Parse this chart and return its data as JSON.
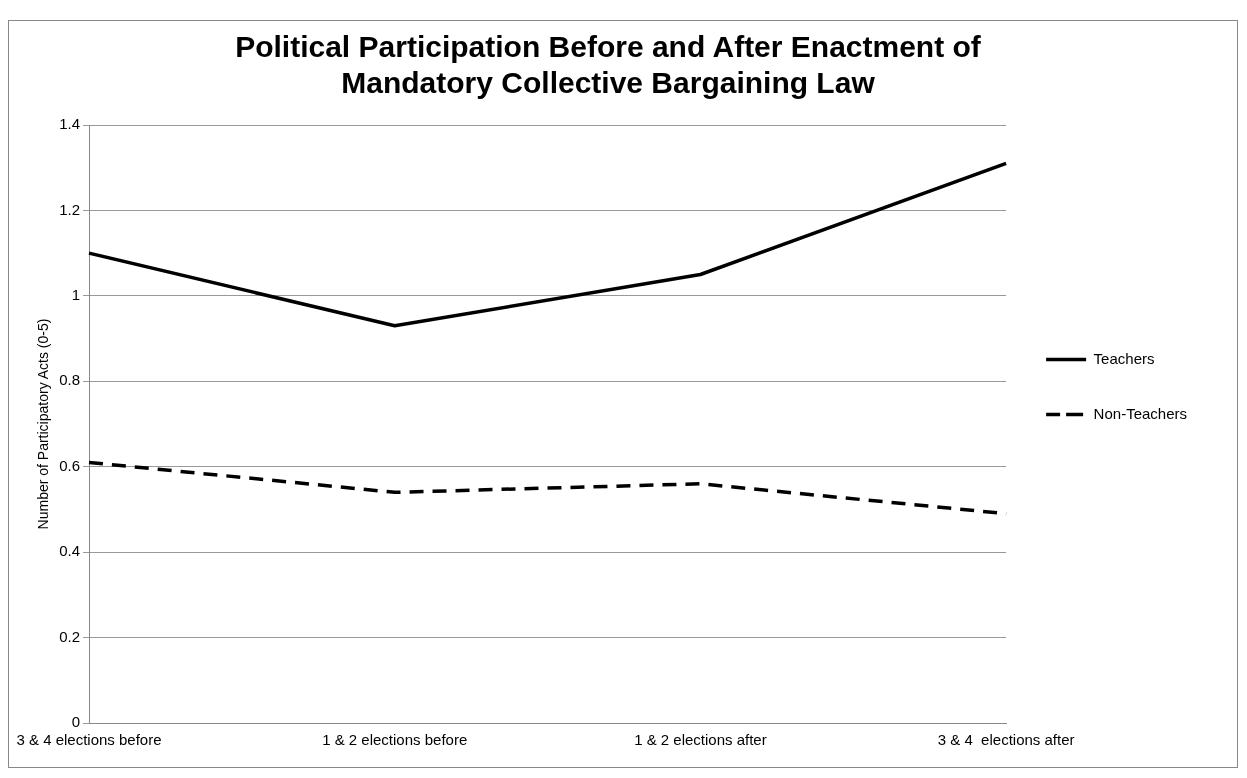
{
  "chart_data": {
    "type": "line",
    "title": [
      "Political Participation Before and After Enactment of",
      "Mandatory Collective Bargaining Law"
    ],
    "ylabel": "Number of Participatory Acts (0-5)",
    "categories": [
      "3 & 4 elections before",
      "1 & 2 elections before",
      "1 & 2 elections after",
      "3 & 4  elections after"
    ],
    "series": [
      {
        "name": "Teachers",
        "color": "#000000",
        "line_style": "solid",
        "values": [
          1.1,
          0.93,
          1.05,
          1.31
        ]
      },
      {
        "name": "Non-Teachers",
        "color": "#000000",
        "line_style": "dashed",
        "values": [
          0.61,
          0.54,
          0.56,
          0.49
        ]
      }
    ],
    "ylim": [
      0,
      1.4
    ],
    "yticks": [
      0,
      0.2,
      0.4,
      0.6,
      0.8,
      1,
      1.2,
      1.4
    ],
    "grid": "y",
    "legend": "right",
    "marker": "none"
  }
}
